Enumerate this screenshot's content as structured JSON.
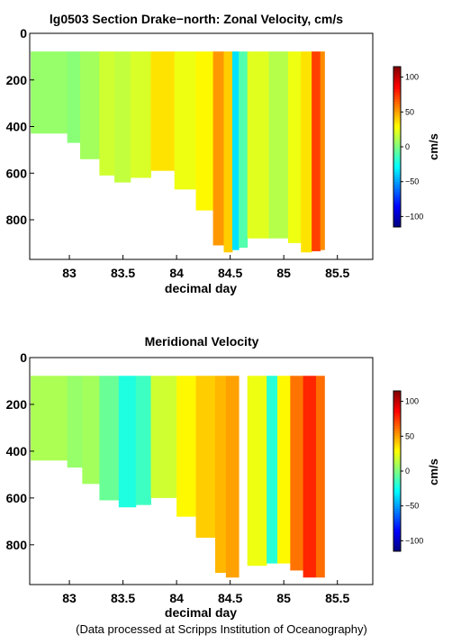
{
  "footer": "(Data processed at Scripps Institution of Oceanography)",
  "chart_data": [
    {
      "type": "heatmap",
      "title": "lg0503 Section Drake−north: Zonal Velocity, cm/s",
      "xlabel": "decimal day",
      "ylabel": "",
      "xlim": [
        82.63,
        85.83
      ],
      "ylim": [
        970,
        0
      ],
      "x_ticks": [
        "83",
        "83.5",
        "84",
        "84.5",
        "85",
        "85.5"
      ],
      "y_ticks": [
        "0",
        "200",
        "400",
        "600",
        "800"
      ],
      "colorbar": {
        "label": "cm/s",
        "range": [
          -115,
          115
        ],
        "ticks": [
          "100",
          "50",
          "0",
          "−50",
          "−100"
        ]
      },
      "columns": [
        {
          "x0": 82.64,
          "x1": 82.98,
          "bottom": 430,
          "v": 5
        },
        {
          "x0": 82.98,
          "x1": 83.1,
          "bottom": 470,
          "v": 2
        },
        {
          "x0": 83.1,
          "x1": 83.28,
          "bottom": 540,
          "v": 8
        },
        {
          "x0": 83.28,
          "x1": 83.42,
          "bottom": 610,
          "v": 18
        },
        {
          "x0": 83.42,
          "x1": 83.57,
          "bottom": 640,
          "v": 15
        },
        {
          "x0": 83.57,
          "x1": 83.76,
          "bottom": 620,
          "v": 20
        },
        {
          "x0": 83.76,
          "x1": 83.98,
          "bottom": 590,
          "v": 35
        },
        {
          "x0": 83.98,
          "x1": 84.18,
          "bottom": 670,
          "v": 25
        },
        {
          "x0": 84.18,
          "x1": 84.34,
          "bottom": 760,
          "v": 30
        },
        {
          "x0": 84.34,
          "x1": 84.44,
          "bottom": 910,
          "v": 52
        },
        {
          "x0": 84.44,
          "x1": 84.52,
          "bottom": 940,
          "v": 40
        },
        {
          "x0": 84.52,
          "x1": 84.58,
          "bottom": 930,
          "v": -35
        },
        {
          "x0": 84.58,
          "x1": 84.66,
          "bottom": 920,
          "v": -10
        },
        {
          "x0": 84.66,
          "x1": 84.86,
          "bottom": 880,
          "v": 22
        },
        {
          "x0": 84.86,
          "x1": 85.04,
          "bottom": 880,
          "v": 12
        },
        {
          "x0": 85.04,
          "x1": 85.16,
          "bottom": 900,
          "v": 25
        },
        {
          "x0": 85.16,
          "x1": 85.26,
          "bottom": 940,
          "v": 35
        },
        {
          "x0": 85.26,
          "x1": 85.34,
          "bottom": 935,
          "v": 72
        },
        {
          "x0": 85.34,
          "x1": 85.38,
          "bottom": 930,
          "v": 55
        }
      ]
    },
    {
      "type": "heatmap",
      "title": "Meridional Velocity",
      "xlabel": "decimal day",
      "ylabel": "",
      "xlim": [
        82.63,
        85.83
      ],
      "ylim": [
        970,
        0
      ],
      "x_ticks": [
        "83",
        "83.5",
        "84",
        "84.5",
        "85",
        "85.5"
      ],
      "y_ticks": [
        "0",
        "200",
        "400",
        "600",
        "800"
      ],
      "colorbar": {
        "label": "cm/s",
        "range": [
          -115,
          115
        ],
        "ticks": [
          "100",
          "50",
          "0",
          "−50",
          "−100"
        ]
      },
      "columns": [
        {
          "x0": 82.64,
          "x1": 82.98,
          "bottom": 440,
          "v": 10
        },
        {
          "x0": 82.98,
          "x1": 83.12,
          "bottom": 470,
          "v": 5
        },
        {
          "x0": 83.12,
          "x1": 83.28,
          "bottom": 540,
          "v": 8
        },
        {
          "x0": 83.28,
          "x1": 83.46,
          "bottom": 610,
          "v": -5
        },
        {
          "x0": 83.46,
          "x1": 83.62,
          "bottom": 640,
          "v": -22
        },
        {
          "x0": 83.62,
          "x1": 83.76,
          "bottom": 630,
          "v": -15
        },
        {
          "x0": 83.76,
          "x1": 84.0,
          "bottom": 600,
          "v": 18
        },
        {
          "x0": 84.0,
          "x1": 84.18,
          "bottom": 680,
          "v": 30
        },
        {
          "x0": 84.18,
          "x1": 84.36,
          "bottom": 770,
          "v": 40
        },
        {
          "x0": 84.36,
          "x1": 84.46,
          "bottom": 920,
          "v": 45
        },
        {
          "x0": 84.46,
          "x1": 84.58,
          "bottom": 940,
          "v": 50
        },
        {
          "x0": 84.66,
          "x1": 84.84,
          "bottom": 890,
          "v": 25
        },
        {
          "x0": 84.84,
          "x1": 84.94,
          "bottom": 880,
          "v": -20
        },
        {
          "x0": 84.94,
          "x1": 85.06,
          "bottom": 880,
          "v": 30
        },
        {
          "x0": 85.06,
          "x1": 85.18,
          "bottom": 910,
          "v": 60
        },
        {
          "x0": 85.18,
          "x1": 85.3,
          "bottom": 940,
          "v": 78
        },
        {
          "x0": 85.3,
          "x1": 85.38,
          "bottom": 940,
          "v": 62
        }
      ]
    }
  ]
}
